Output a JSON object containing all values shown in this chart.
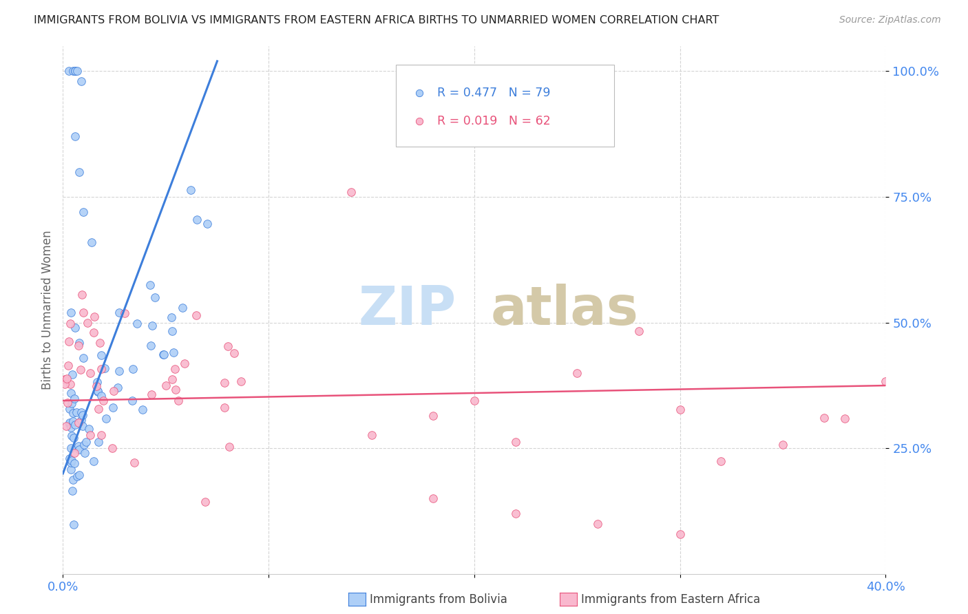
{
  "title": "IMMIGRANTS FROM BOLIVIA VS IMMIGRANTS FROM EASTERN AFRICA BIRTHS TO UNMARRIED WOMEN CORRELATION CHART",
  "source": "Source: ZipAtlas.com",
  "ylabel": "Births to Unmarried Women",
  "ytick_labels": [
    "100.0%",
    "75.0%",
    "50.0%",
    "25.0%"
  ],
  "ytick_positions": [
    1.0,
    0.75,
    0.5,
    0.25
  ],
  "xlim": [
    0.0,
    0.4
  ],
  "ylim": [
    0.0,
    1.05
  ],
  "bolivia_color": "#aecff7",
  "eastern_africa_color": "#f9b8ce",
  "trend_bolivia_color": "#3d7edb",
  "trend_eastern_africa_color": "#e8527a",
  "R_bolivia": 0.477,
  "N_bolivia": 79,
  "R_eastern_africa": 0.019,
  "N_eastern_africa": 62,
  "background_color": "#ffffff",
  "grid_color": "#d0d0d0",
  "tick_color": "#4488ee",
  "title_color": "#222222",
  "zip_color": "#c8dff5",
  "atlas_color": "#d4c9a8"
}
